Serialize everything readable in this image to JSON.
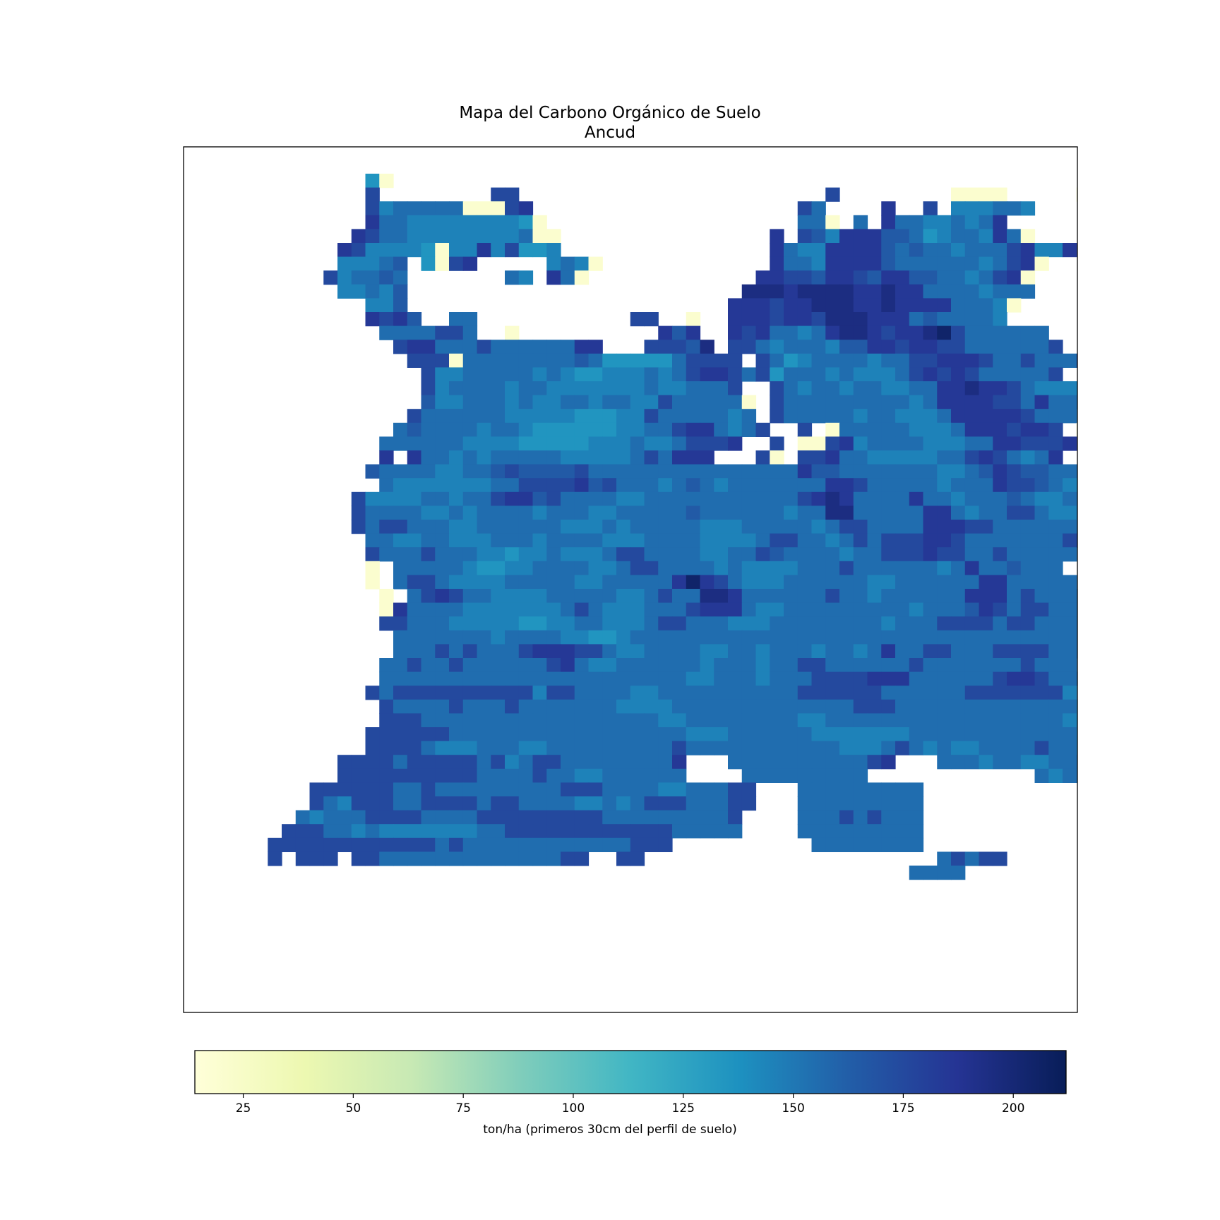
{
  "chart_data": {
    "type": "heatmap",
    "title": "Mapa del Carbono Orgánico de Suelo",
    "subtitle": "Ancud",
    "colorbar": {
      "label": "ton/ha (primeros 30cm del perfil de suelo)",
      "ticks": [
        25,
        50,
        75,
        100,
        125,
        150,
        175,
        200
      ],
      "vmin": 14,
      "vmax": 212,
      "colormap": "YlGnBu",
      "orientation": "horizontal",
      "placement": "bottom"
    },
    "colormap_stops": [
      {
        "v": 0.0,
        "color": "#ffffd9"
      },
      {
        "v": 0.125,
        "color": "#edf8b1"
      },
      {
        "v": 0.25,
        "color": "#c7e9b4"
      },
      {
        "v": 0.375,
        "color": "#7fcdbb"
      },
      {
        "v": 0.5,
        "color": "#41b6c4"
      },
      {
        "v": 0.625,
        "color": "#1d91c0"
      },
      {
        "v": 0.75,
        "color": "#225ea8"
      },
      {
        "v": 0.875,
        "color": "#253494"
      },
      {
        "v": 1.0,
        "color": "#081d58"
      }
    ],
    "grid": {
      "legend": "A=20 B=40 C=110 D=125 E=135 F=145 G=155 H=165 I=175 J=185 K=195 L=205",
      "rows": [
        "..........Ek...................................................",
        "..........I........II......................I........kkkk.....k.",
        "..........IFGGGGGkkkIJ...................IG....J..I.FFFGGF.....",
        "..........JGGFFFFFFFFEk..................GGk.G.JGGFFGFGJ.......",
        ".........JIGGFFFFFFFFGkk...............J.IHFJJJHHGEFGGFJGk.....",
        "........JIFFFFEkFFJFIEEF...............JGFFJJJJHGHGGFGGGIJFFJ..",
        "........FFFGH.EkIJ.....FGFk............JGGFJJJJHGGGGGGFGIJk....",
        ".......IFGGHG.......GF.JGk............JJIIHJJIHJJHHGGFGIJk.....",
        "........FFGFH........................KKKJKKKKJJKJJGGGGFGGG.....",
        "..........FFH.......................JJJIJJKKKJJKJJJJGGGFk......",
        "..........JIJH..GG...........II..k..JJJIJJIKKKJJJGHGGGGF.......",
        "...........GGGGIIG..k..........JHJ..JIJGGFGJKKJIJJKLIGGGGGG....",
        "............IJJGGGIGGGGGGJJ...IIIHK.IIGFGGGFHHJJIJJIIGGGGGGI..Ik",
        ".............IIIkGGGGGGGGHGEEEEEGIIII.IGEFGGGGFGGIIJJJIGGIGGGI..",
        "..............IFFGGGGGFGFEEFFFGFGIJJIGIEGGGFGFFFGIJIJIGGGGGI...",
        "..............IFGGGGFGGFFFFFFFGFFGGGI..IGFGGFGGFFGGJJKJJIGFFFFk..",
        "..............HFFGGGFGFFGGFGGFFIGGGGGk.IGGGGGGGGGFGJJJJIIGJGGG...",
        ".............IGGGGGGFFFFFEEEFFIGGGGGFG.IGGGGGFGGFFFGJJJJJIGGG....",
        "............GHGGGGFGGFEEEEEEFFGGIJJGFGI..I.kGGGGGFFFGJJJIJJI.k...",
        "...........GGGGGGFFFFEEEEEFFFGFFGIIIJ..I.kkIJFGGGGFFFGGJJIIIJ....",
        "...........J.JGGFGFGGGGGFFFFFGIGJJJ...Ik.IIJGGFFFFFGGIJIGFGJ...I..",
        "..........HGGGGFFGGHIHHHHIGGGGGGGGGGGGGGGJHHGGGGGGGFFGHJIHHGGGG..",
        "...........GFFFFFFFGGIIIIJHIGGGFGHGFGGGGGGGJJIGGGGGFGGGJIIHGFFGH..",
        ".........IFFFFGGFGGIJJHIGGGGFFGGGGGGGGGGGIJKJGGGGJGGFGGGHGFFGGI...",
        ".........IGGGGFFGFGGGGFGGGFFGGGGGHGGGGGGFGGKKGGGGGJJGFGGIIGFFGGG...",
        ".........IGIIGGGFFGGGGGGFFFGFGGGGGFFFGGGGGFGIIGGGGJJJIIGGGGGGGG.J..",
        "..........GGFFGGFFFGGGFGGGGFFFGGGGFFFFGIIGGFGIGIIIJJIGGGGGGGIIIJ...",
        "..........IGGGIGGGFFEFFGFFFGIIGGGGFFGGIHGGGGFGGIIIJIIGGIGGGGG........",
        "..........k.GGGGGFEEFFGGGGFFGIIGGGGFGFFFFGGGIGGGGGGFGJGGHGGG.....",
        "..........k.GIIGFFFFGGGGGFFGGGGGJLJIGFFFGGGGGGFFGGGGGGJJGGGGG....",
        "...........k.GIJIGGFFFFGGGGGFFGIGGKKJGGGGGGIGGFGGGGGGJJJGIGGGG...",
        "...........kJGGGGFFFFFFFGIGFFFGGGIJJJGFFGGGGGGGGGFGGGHJIGIIGGGGI...",
        "...........IIGGGFFFFFEEFFGGFFFGIIGGGFFFGGGGGGGGFGGGIIIIGIIGGGGGG....",
        "............GGGGGGGFGGGGFFEEFGGGGGGGGGGGGGGGGGGGGGGGGGGGGGGGGGG...",
        "............GGGIGIGGGIJJJIIGFFGGGGFFGGFGGGFGGFGJGGIIGGGIIIIGGG.....",
        "...........GGIGGIGGGGGGIJGFFGGGGGGFGGGFGGIIGGGGGGIGGGGGGGIGGG....",
        "...........GGGGGGGGGGGGGGGGGGGGGGFFGGGFGGGIIIIJJJGGGGGGIJJIGGG....",
        "..........IGIIIIIIIIIIFIIGGGGFFGGGGGGGGGGIIIIIIGGGGGGIIIIIIIF....",
        "...........IGGGGIGGGIGGGGGGGFFFFGGGGGGGGGGGGGIIIGGGGGGGGGGGGGF...",
        "...........IIIGGGGGGGGGGGGGGGGGFFGGGGGGGGFFGGGGGGGGGGGGGGGGGFF...",
        "..........IIIIIIGGGGGGGGGGGGGGGGGFFFGGGGGGFFFFFFFGGGGGGGGGGGGFF...",
        "..........IIIIGFFFGGGFFGGGGGGGGGIGGGGGGGGGGGFFFGIGFGFFGGGGIGGFFFF...",
        "........IIIIGIIIIIGIFGIIGGGGGGGGJ...GGGGGGGGGGIJ...GGGFGGFFGGGGG....",
        "........IIIIIIIIIIGGGGIGGFFGGGGGG....GGGGGGGGG............GFGGGGG..",
        "......IIIIIIGGIGGGGGGGGGIIIGGGGFFGGGII...GGGGGGGGG.............IIIII...",
        "......IGFIIIGGIIIIGIIGGGGFFGFGIIIGGGII...GGGGGGGGG.............IIII...",
        ".....GFGGGIIIIGGGGIIIIIIIIIGGGGGGGGGI....GGGIGIGGG..............I...",
        "....IIIGGFGFFFFFFFGGIIIIIIIIIIIIGGGGG....GGGGGGGGG..................",
        "...IIIIIIIIIIIIGIGGGGGGGGGGGGIII..........GGGGGGGG..................",
        "...I.III.IIGGGGGGGGGGGGGII..II.....................GIGII..............",
        ".................................................GGGG................"
      ]
    }
  }
}
